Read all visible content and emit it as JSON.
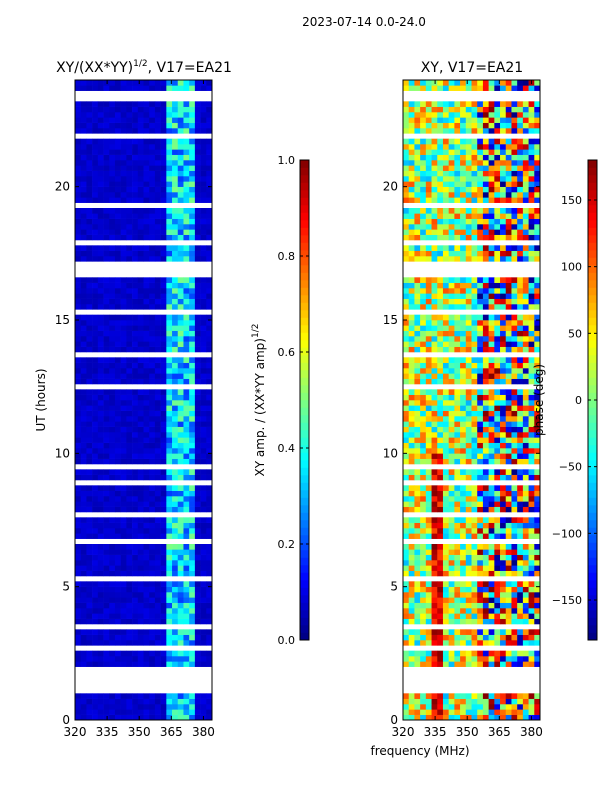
{
  "suptitle": "2023-07-14 0.0-24.0",
  "chart_data": [
    {
      "type": "heatmap",
      "title": "XY/(XX*YY)^{1/2}, V17=EA21",
      "title_main": "XY/(XX*YY)",
      "title_sup": "1/2",
      "title_tail": ", V17=EA21",
      "xlabel": "",
      "ylabel": "UT (hours)",
      "xlim": [
        320,
        384
      ],
      "ylim": [
        0,
        24
      ],
      "x_ticks": [
        320,
        335,
        350,
        365,
        380
      ],
      "y_ticks": [
        0,
        5,
        10,
        15,
        20
      ],
      "colorbar": {
        "label": "XY amp. / (XX*YY amp)^{1/2}",
        "label_main": "XY amp. / (XX*YY amp)",
        "label_sup": "1/2",
        "range": [
          0.0,
          1.0
        ],
        "ticks": [
          "0.0",
          "0.2",
          "0.4",
          "0.6",
          "0.8",
          "1.0"
        ],
        "tick_values": [
          0.0,
          0.2,
          0.4,
          0.6,
          0.8,
          1.0
        ],
        "colormap": "jet"
      },
      "bright_band_MHz": [
        362,
        377
      ],
      "background_value": 0.05
    },
    {
      "type": "heatmap",
      "title": "XY, V17=EA21",
      "xlabel": "",
      "ylabel": "",
      "xlim": [
        320,
        384
      ],
      "ylim": [
        0,
        24
      ],
      "x_ticks": [
        320,
        335,
        350,
        365,
        380
      ],
      "y_ticks": [
        0,
        5,
        10,
        15,
        20
      ],
      "colorbar": {
        "label": "phase (deg)",
        "range": [
          -180,
          180
        ],
        "ticks": [
          "−150",
          "−100",
          "−50",
          "0",
          "50",
          "100",
          "150"
        ],
        "tick_values": [
          -150,
          -100,
          -50,
          0,
          50,
          100,
          150
        ],
        "colormap": "jet"
      }
    }
  ],
  "shared_xlabel": "frequency (MHz)",
  "data_gaps_UT_hours": [
    [
      0.95,
      1.75
    ],
    [
      1.85,
      2.0
    ],
    [
      2.65,
      2.72
    ],
    [
      3.45,
      3.55
    ],
    [
      4.15,
      4.25
    ],
    [
      5.0,
      5.05
    ],
    [
      5.3,
      5.38
    ],
    [
      6.65,
      6.8
    ],
    [
      7.55,
      7.75
    ],
    [
      8.85,
      9.1
    ],
    [
      9.5,
      9.55
    ],
    [
      10.2,
      10.28
    ],
    [
      12.45,
      12.55
    ],
    [
      13.7,
      13.76
    ],
    [
      14.15,
      14.2
    ],
    [
      14.8,
      14.86
    ],
    [
      15.3,
      15.36
    ],
    [
      16.6,
      17.3
    ],
    [
      17.8,
      18.0
    ],
    [
      18.4,
      18.5
    ],
    [
      19.3,
      19.4
    ],
    [
      20.6,
      20.7
    ],
    [
      21.85,
      22.0
    ],
    [
      22.6,
      22.7
    ],
    [
      23.3,
      23.35
    ],
    [
      23.5,
      23.55
    ],
    [
      23.75,
      23.8
    ]
  ]
}
